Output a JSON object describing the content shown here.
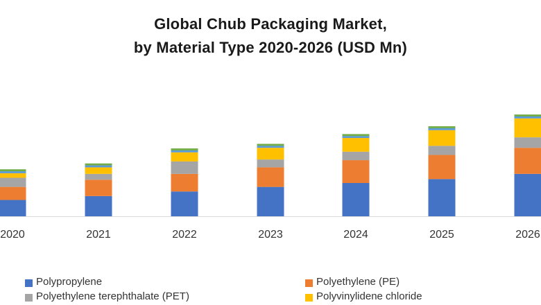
{
  "chart_data": {
    "type": "bar",
    "stacked": true,
    "title_lines": [
      "Global  Chub Packaging Market,",
      "by Material Type 2020-2026 (USD Mn)"
    ],
    "categories": [
      "2020",
      "2021",
      "2022",
      "2023",
      "2024",
      "2025",
      "2026"
    ],
    "series": [
      {
        "name": "Polypropylene",
        "color": "#4472C4",
        "values": [
          25,
          31,
          38,
          45,
          51,
          57,
          65
        ]
      },
      {
        "name": "Polyethylene (PE)",
        "color": "#ED7D31",
        "values": [
          20,
          25,
          27,
          30,
          35,
          37,
          40
        ]
      },
      {
        "name": "Polyethylene terephthalate (PET)",
        "color": "#A5A5A5",
        "values": [
          14,
          9,
          19,
          12,
          13,
          14,
          16
        ]
      },
      {
        "name": "Polyvinylidene chloride",
        "color": "#FFC000",
        "values": [
          7,
          10,
          14,
          18,
          21,
          24,
          29
        ]
      },
      {
        "name": "",
        "color": "#5B9BD5",
        "values": [
          3,
          3,
          3,
          3,
          3,
          3,
          3
        ]
      },
      {
        "name": "",
        "color": "#70AD47",
        "values": [
          3,
          3,
          3,
          3,
          3,
          3,
          3
        ]
      }
    ],
    "xlabel": "",
    "ylabel": "",
    "ylim": [
      0,
      170
    ],
    "grid": false,
    "legend_position": "bottom"
  }
}
